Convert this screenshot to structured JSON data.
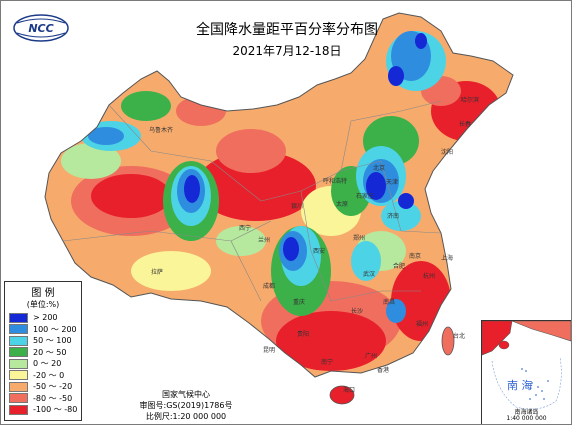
{
  "title": "全国降水量距平百分率分布图",
  "subtitle": "2021年7月12-18日",
  "logo_text": "NCC",
  "legend": {
    "title": "图 例",
    "unit": "(单位:%)",
    "items": [
      {
        "label": "> 200",
        "color": "#1528d6"
      },
      {
        "label": "100 ～ 200",
        "color": "#2f8de0"
      },
      {
        "label": "50 ～ 100",
        "color": "#4dd3e6"
      },
      {
        "label": "20 ～ 50",
        "color": "#3cb14a"
      },
      {
        "label": "0 ～ 20",
        "color": "#b6e89d"
      },
      {
        "label": "-20 ～ 0",
        "color": "#fbf59a"
      },
      {
        "label": "-50 ～ -20",
        "color": "#f6ab6d"
      },
      {
        "label": "-80 ～ -50",
        "color": "#f06e5e"
      },
      {
        "label": "-100 ～ -80",
        "color": "#e8202c"
      }
    ]
  },
  "credits": {
    "agency": "国家气候中心",
    "approval": "审图号:GS(2019)1786号",
    "scale": "比例尺:1:20 000 000"
  },
  "inset": {
    "sea_label": "南 海",
    "caption": "南海诸岛",
    "scale": "1:40 000 000"
  },
  "place_labels": [
    {
      "name": "乌鲁木齐"
    },
    {
      "name": "拉萨"
    },
    {
      "name": "西宁"
    },
    {
      "name": "兰州"
    },
    {
      "name": "银川"
    },
    {
      "name": "呼和浩特"
    },
    {
      "name": "北京"
    },
    {
      "name": "天津"
    },
    {
      "name": "石家庄"
    },
    {
      "name": "太原"
    },
    {
      "name": "济南"
    },
    {
      "name": "郑州"
    },
    {
      "name": "西安"
    },
    {
      "name": "成都"
    },
    {
      "name": "重庆"
    },
    {
      "name": "贵阳"
    },
    {
      "name": "昆明"
    },
    {
      "name": "长沙"
    },
    {
      "name": "武汉"
    },
    {
      "name": "南昌"
    },
    {
      "name": "福州"
    },
    {
      "name": "杭州"
    },
    {
      "name": "上海"
    },
    {
      "name": "南京"
    },
    {
      "name": "合肥"
    },
    {
      "name": "广州"
    },
    {
      "name": "南宁"
    },
    {
      "name": "海口"
    },
    {
      "name": "香港"
    },
    {
      "name": "台北"
    },
    {
      "name": "沈阳"
    },
    {
      "name": "长春"
    },
    {
      "name": "哈尔滨"
    }
  ]
}
